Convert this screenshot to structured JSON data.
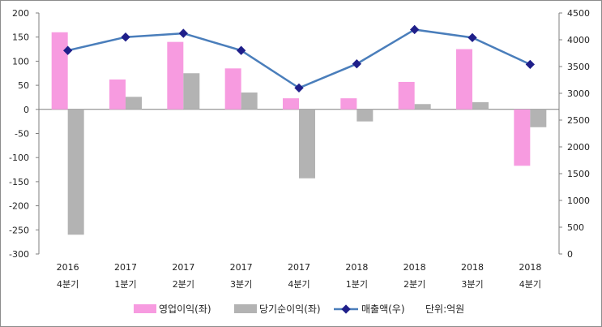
{
  "chart_data": {
    "type": "bar",
    "categories": [
      [
        "2016",
        "4분기"
      ],
      [
        "2017",
        "1분기"
      ],
      [
        "2017",
        "2분기"
      ],
      [
        "2017",
        "3분기"
      ],
      [
        "2017",
        "4분기"
      ],
      [
        "2018",
        "1분기"
      ],
      [
        "2018",
        "2분기"
      ],
      [
        "2018",
        "3분기"
      ],
      [
        "2018",
        "4분기"
      ]
    ],
    "series": [
      {
        "name": "영업이익(좌)",
        "type": "bar",
        "axis": "left",
        "color": "#f79be0",
        "values": [
          160,
          62,
          140,
          85,
          23,
          23,
          57,
          125,
          -117
        ]
      },
      {
        "name": "당기순이익(좌)",
        "type": "bar",
        "axis": "left",
        "color": "#b3b3b3",
        "values": [
          -260,
          26,
          75,
          35,
          -143,
          -25,
          11,
          15,
          -37
        ]
      },
      {
        "name": "매출액(우)",
        "type": "line",
        "axis": "right",
        "color": "#4a7ebb",
        "marker_color": "#1f1f8a",
        "values": [
          3800,
          4050,
          4120,
          3800,
          3100,
          3550,
          4190,
          4040,
          3540
        ]
      }
    ],
    "y_left": {
      "min": -300,
      "max": 200,
      "step": 50
    },
    "y_right": {
      "min": 0,
      "max": 4500,
      "step": 500
    },
    "unit_note": "단위:억원"
  }
}
